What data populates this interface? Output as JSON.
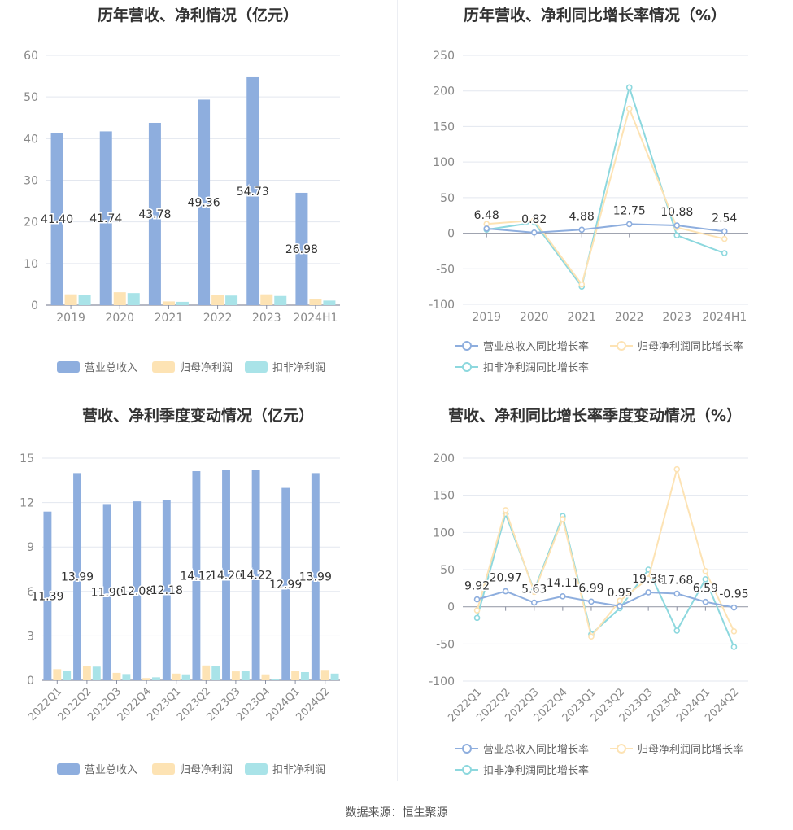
{
  "source_text": "数据来源：恒生聚源",
  "colors": {
    "revenue": "#8eaede",
    "net_profit": "#fde3b4",
    "deducted": "#a9e3e8",
    "rev_line": "#8eaede",
    "np_line": "#fde3b4",
    "ded_line": "#8dd8de"
  },
  "legend_bars": [
    "营业总收入",
    "归母净利润",
    "扣非净利润"
  ],
  "legend_lines": [
    "营业总收入同比增长率",
    "归母净利润同比增长率",
    "扣非净利润同比增长率"
  ],
  "chart_data": [
    {
      "type": "bar",
      "title": "历年营收、净利情况（亿元）",
      "categories": [
        "2019",
        "2020",
        "2021",
        "2022",
        "2023",
        "2024H1"
      ],
      "ylim": [
        0,
        60
      ],
      "yticks": [
        0,
        10,
        20,
        30,
        40,
        50,
        60
      ],
      "series": [
        {
          "name": "营业总收入",
          "values": [
            41.4,
            41.74,
            43.78,
            49.36,
            54.73,
            26.98
          ],
          "labels": [
            "41.40",
            "41.74",
            "43.78",
            "49.36",
            "54.73",
            "26.98"
          ]
        },
        {
          "name": "归母净利润",
          "values": [
            2.6,
            3.1,
            0.9,
            2.4,
            2.6,
            1.4
          ]
        },
        {
          "name": "扣非净利润",
          "values": [
            2.5,
            2.9,
            0.8,
            2.3,
            2.2,
            1.1
          ]
        }
      ],
      "legend": "bottom",
      "grid": true
    },
    {
      "type": "line",
      "title": "历年营收、净利同比增长率情况（%）",
      "categories": [
        "2019",
        "2020",
        "2021",
        "2022",
        "2023",
        "2024H1"
      ],
      "ylim": [
        -100,
        250
      ],
      "yticks": [
        -100,
        -50,
        0,
        50,
        100,
        150,
        200,
        250
      ],
      "series": [
        {
          "name": "营业总收入同比增长率",
          "values": [
            6.48,
            0.82,
            4.88,
            12.75,
            10.88,
            2.54
          ],
          "labels": [
            "6.48",
            "0.82",
            "4.88",
            "12.75",
            "10.88",
            "2.54"
          ]
        },
        {
          "name": "归母净利润同比增长率",
          "values": [
            13,
            18,
            -72,
            175,
            8,
            -8
          ]
        },
        {
          "name": "扣非净利润同比增长率",
          "values": [
            5,
            15,
            -75,
            205,
            -3,
            -28
          ]
        }
      ],
      "legend": "bottom",
      "grid": true
    },
    {
      "type": "bar",
      "title": "营收、净利季度变动情况（亿元）",
      "categories": [
        "2022Q1",
        "2022Q2",
        "2022Q3",
        "2022Q4",
        "2023Q1",
        "2023Q2",
        "2023Q3",
        "2023Q4",
        "2024Q1",
        "2024Q2"
      ],
      "ylim": [
        0,
        15
      ],
      "yticks": [
        0,
        3,
        6,
        9,
        12,
        15
      ],
      "series": [
        {
          "name": "营业总收入",
          "values": [
            11.39,
            13.99,
            11.9,
            12.08,
            12.18,
            14.12,
            14.2,
            14.22,
            12.99,
            13.99
          ],
          "labels": [
            "11.39",
            "13.99",
            "11.90",
            "12.08",
            "12.18",
            "14.12",
            "14.20",
            "14.22",
            "12.99",
            "13.99"
          ]
        },
        {
          "name": "归母净利润",
          "values": [
            0.75,
            0.95,
            0.5,
            0.15,
            0.45,
            1.0,
            0.6,
            0.4,
            0.65,
            0.7
          ]
        },
        {
          "name": "扣非净利润",
          "values": [
            0.65,
            0.92,
            0.42,
            0.2,
            0.4,
            0.95,
            0.62,
            0.1,
            0.55,
            0.45
          ]
        }
      ],
      "legend": "bottom",
      "grid": true
    },
    {
      "type": "line",
      "title": "营收、净利同比增长率季度变动情况（%）",
      "categories": [
        "2022Q1",
        "2022Q2",
        "2022Q3",
        "2022Q4",
        "2023Q1",
        "2023Q2",
        "2023Q3",
        "2023Q4",
        "2024Q1",
        "2024Q2"
      ],
      "ylim": [
        -100,
        200
      ],
      "yticks": [
        -100,
        -50,
        0,
        50,
        100,
        150,
        200
      ],
      "series": [
        {
          "name": "营业总收入同比增长率",
          "values": [
            9.92,
            20.97,
            5.63,
            14.11,
            6.99,
            0.95,
            19.38,
            17.68,
            6.59,
            -0.95
          ],
          "labels": [
            "9.92",
            "20.97",
            "5.63",
            "14.11",
            "6.99",
            "0.95",
            "19.38",
            "17.68",
            "6.59",
            "-0.95"
          ]
        },
        {
          "name": "归母净利润同比增长率",
          "values": [
            -5,
            130,
            20,
            118,
            -40,
            8,
            38,
            185,
            48,
            -33
          ]
        },
        {
          "name": "扣非净利润同比增长率",
          "values": [
            -15,
            125,
            22,
            122,
            -37,
            -2,
            50,
            -32,
            37,
            -54
          ]
        }
      ],
      "legend": "bottom",
      "grid": true
    }
  ]
}
